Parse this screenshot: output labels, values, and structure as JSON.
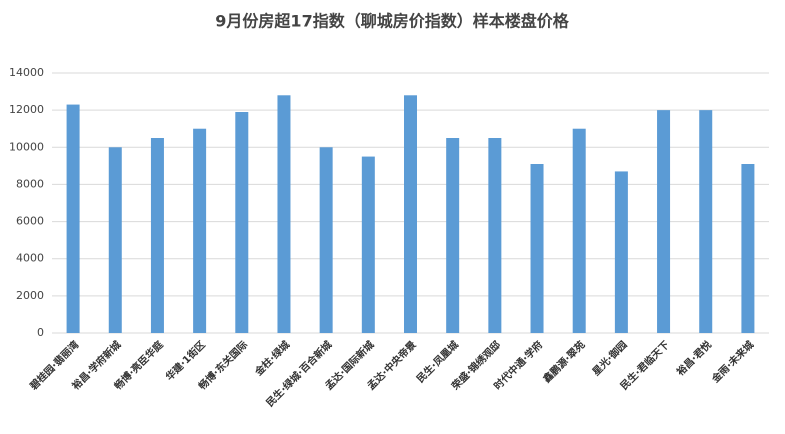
{
  "chart_data": {
    "type": "bar",
    "title": "9月份房超17指数（聊城房价指数）样本楼盘价格",
    "categories": [
      "碧桂园·翡丽湾",
      "裕昌·学府新城",
      "畅博·亮臣华庭",
      "华建·1街区",
      "畅博·东关国际",
      "金柱·绿城",
      "民生·绿城·百合新城",
      "孟达·国际新城",
      "孟达·中央帝景",
      "民生·凤凰城",
      "荣盛·锦绣观邸",
      "时代中通·学府",
      "鑫鹏源·翠苑",
      "星光·御园",
      "民生·君临天下",
      "裕昌·君悦",
      "金雨·未来城"
    ],
    "values": [
      12300,
      10000,
      10500,
      11000,
      11900,
      12800,
      10000,
      9500,
      12800,
      10500,
      10500,
      9100,
      11000,
      8700,
      12000,
      12000,
      9100
    ],
    "color": "#5b9bd5",
    "ylim": [
      0,
      14000
    ],
    "yticks": [
      0,
      2000,
      4000,
      6000,
      8000,
      10000,
      12000,
      14000
    ],
    "grid": true
  }
}
